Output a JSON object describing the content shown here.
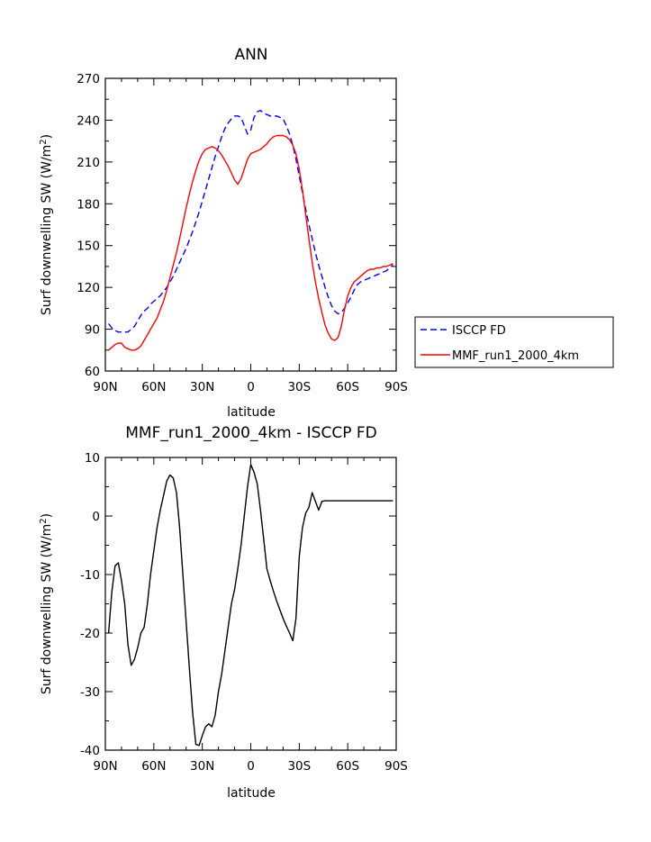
{
  "chart_data": [
    {
      "type": "line",
      "title": "ANN",
      "xlabel": "latitude",
      "ylabel_main": "Surf downwelling SW (W/m",
      "ylabel_sup": "2",
      "ylabel_close": ")",
      "xlim": [
        -90,
        90
      ],
      "ylim": [
        60,
        270
      ],
      "xticks": [
        {
          "v": -90,
          "label": "90N"
        },
        {
          "v": -60,
          "label": "60N"
        },
        {
          "v": -30,
          "label": "30N"
        },
        {
          "v": 0,
          "label": "0"
        },
        {
          "v": 30,
          "label": "30S"
        },
        {
          "v": 60,
          "label": "60S"
        },
        {
          "v": 90,
          "label": "90S"
        }
      ],
      "yticks": [
        60,
        90,
        120,
        150,
        180,
        210,
        240,
        270
      ],
      "legend_position": "right",
      "series": [
        {
          "name": "ISCCP FD",
          "color": "#0000ff",
          "dash": true,
          "x": [
            -88,
            -86,
            -84,
            -82,
            -80,
            -78,
            -76,
            -74,
            -72,
            -70,
            -68,
            -66,
            -64,
            -62,
            -60,
            -58,
            -56,
            -54,
            -52,
            -50,
            -48,
            -46,
            -44,
            -42,
            -40,
            -38,
            -36,
            -34,
            -32,
            -30,
            -28,
            -26,
            -24,
            -22,
            -20,
            -18,
            -16,
            -14,
            -12,
            -10,
            -8,
            -6,
            -4,
            -2,
            0,
            2,
            4,
            6,
            8,
            10,
            12,
            14,
            16,
            18,
            20,
            22,
            24,
            26,
            28,
            30,
            32,
            34,
            36,
            38,
            40,
            42,
            44,
            46,
            48,
            50,
            52,
            54,
            56,
            58,
            60,
            62,
            64,
            66,
            68,
            70,
            72,
            74,
            76,
            78,
            80,
            82,
            84,
            86,
            88
          ],
          "y": [
            94,
            91,
            89,
            88,
            88,
            88,
            88,
            90,
            92,
            96,
            100,
            103,
            105,
            108,
            110,
            112,
            114,
            117,
            120,
            124,
            128,
            133,
            138,
            143,
            148,
            154,
            160,
            167,
            174,
            182,
            190,
            198,
            206,
            214,
            221,
            228,
            234,
            238,
            241,
            243,
            243,
            242,
            236,
            230,
            233,
            242,
            246,
            247,
            245,
            244,
            243,
            243,
            243,
            242,
            241,
            236,
            230,
            222,
            212,
            200,
            188,
            176,
            165,
            155,
            145,
            136,
            128,
            120,
            113,
            107,
            103,
            101,
            102,
            105,
            109,
            113,
            118,
            122,
            124,
            125,
            126,
            127,
            128,
            129,
            130,
            131,
            132,
            134,
            136
          ]
        },
        {
          "name": "MMF_run1_2000_4km",
          "color": "#ff0000",
          "dash": false,
          "x": [
            -88,
            -86,
            -84,
            -82,
            -80,
            -78,
            -76,
            -74,
            -72,
            -70,
            -68,
            -66,
            -64,
            -62,
            -60,
            -58,
            -56,
            -54,
            -52,
            -50,
            -48,
            -46,
            -44,
            -42,
            -40,
            -38,
            -36,
            -34,
            -32,
            -30,
            -28,
            -26,
            -24,
            -22,
            -20,
            -18,
            -16,
            -14,
            -12,
            -10,
            -8,
            -6,
            -4,
            -2,
            0,
            2,
            4,
            6,
            8,
            10,
            12,
            14,
            16,
            18,
            20,
            22,
            24,
            26,
            28,
            30,
            32,
            34,
            36,
            38,
            40,
            42,
            44,
            46,
            48,
            50,
            52,
            54,
            56,
            58,
            60,
            62,
            64,
            66,
            68,
            70,
            72,
            74,
            76,
            78,
            80,
            82,
            84,
            86,
            88
          ],
          "y": [
            75,
            77,
            79,
            80,
            80,
            77,
            76,
            75,
            75,
            76,
            78,
            82,
            86,
            90,
            94,
            98,
            104,
            110,
            118,
            127,
            136,
            145,
            155,
            166,
            177,
            187,
            196,
            204,
            211,
            216,
            219,
            220,
            221,
            220,
            218,
            215,
            211,
            207,
            202,
            197,
            194,
            198,
            205,
            212,
            216,
            217,
            218,
            219,
            221,
            223,
            226,
            228,
            229,
            229,
            229,
            228,
            226,
            222,
            216,
            205,
            190,
            172,
            155,
            138,
            124,
            112,
            102,
            93,
            87,
            83,
            82,
            84,
            92,
            104,
            114,
            120,
            124,
            126,
            128,
            130,
            132,
            133,
            133,
            134,
            134,
            135,
            135,
            136,
            137
          ]
        }
      ]
    },
    {
      "type": "line",
      "title": "MMF_run1_2000_4km - ISCCP FD",
      "xlabel": "latitude",
      "ylabel_main": "Surf downwelling SW (W/m",
      "ylabel_sup": "2",
      "ylabel_close": ")",
      "xlim": [
        -90,
        90
      ],
      "ylim": [
        -40,
        10
      ],
      "xticks": [
        {
          "v": -90,
          "label": "90N"
        },
        {
          "v": -60,
          "label": "60N"
        },
        {
          "v": -30,
          "label": "30N"
        },
        {
          "v": 0,
          "label": "0"
        },
        {
          "v": 30,
          "label": "30S"
        },
        {
          "v": 60,
          "label": "60S"
        },
        {
          "v": 90,
          "label": "90S"
        }
      ],
      "yticks": [
        -40,
        -30,
        -20,
        -10,
        0,
        10
      ],
      "series": [
        {
          "color": "#000000",
          "dash": false,
          "x": [
            -88,
            -86,
            -84,
            -82,
            -80,
            -78,
            -76,
            -74,
            -72,
            -70,
            -68,
            -66,
            -64,
            -62,
            -60,
            -58,
            -56,
            -54,
            -52,
            -50,
            -48,
            -46,
            -44,
            -42,
            -40,
            -38,
            -36,
            -34,
            -32,
            -30,
            -28,
            -26,
            -24,
            -22,
            -20,
            -18,
            -16,
            -14,
            -12,
            -10,
            -8,
            -6,
            -4,
            -2,
            0,
            2,
            4,
            6,
            8,
            10,
            12,
            14,
            16,
            18,
            20,
            22,
            24,
            26,
            28,
            30,
            32,
            34,
            36,
            38,
            40,
            42,
            44,
            46,
            48,
            50,
            52,
            54,
            56,
            58,
            60,
            62,
            64,
            66,
            68,
            70,
            72,
            74,
            76,
            78,
            80,
            82,
            84,
            86,
            88
          ],
          "y": [
            -20,
            -13,
            -8.5,
            -8,
            -11,
            -15,
            -22,
            -25.5,
            -24.5,
            -22.5,
            -20,
            -19,
            -15,
            -10,
            -6,
            -2,
            1,
            3.5,
            6,
            7,
            6.5,
            4,
            -2,
            -10,
            -18,
            -26,
            -33.5,
            -39,
            -39.2,
            -37.5,
            -36,
            -35.5,
            -36,
            -34,
            -30,
            -27,
            -23,
            -19,
            -15,
            -12.5,
            -9,
            -5,
            0,
            5,
            8.8,
            7.5,
            5.5,
            1,
            -4,
            -9,
            -11,
            -12.8,
            -14.5,
            -16,
            -17.5,
            -18.8,
            -20,
            -21.3,
            -17.5,
            -7,
            -2,
            0.5,
            1.5,
            4,
            2.5,
            1,
            2.5,
            2.6,
            2.6,
            2.6,
            2.6,
            2.6,
            2.6,
            2.6,
            2.6,
            2.6,
            2.6,
            2.6,
            2.6,
            2.6,
            2.6,
            2.6,
            2.6,
            2.6,
            2.6,
            2.6,
            2.6,
            2.6,
            2.6
          ]
        }
      ]
    }
  ]
}
